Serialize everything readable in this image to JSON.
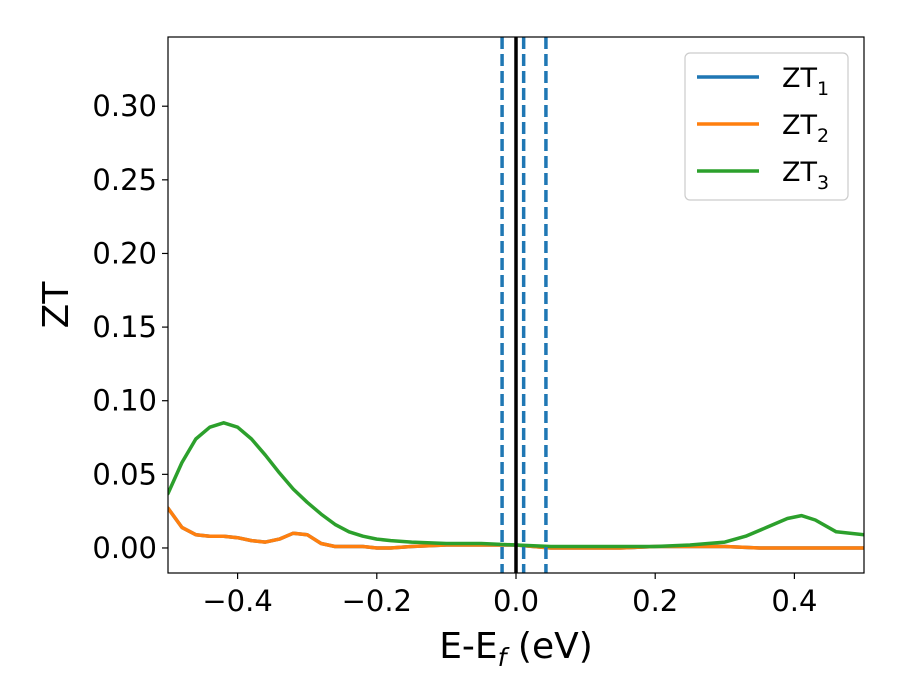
{
  "chart_data": {
    "type": "line",
    "title": "",
    "xlabel": {
      "base": "E-E",
      "sub": "f",
      "suffix": " (eV)"
    },
    "ylabel": "ZT",
    "xlim": [
      -0.5,
      0.5
    ],
    "ylim": [
      -0.017,
      0.347
    ],
    "xticks": [
      {
        "value": -0.4,
        "label": "−0.4"
      },
      {
        "value": -0.2,
        "label": "−0.2"
      },
      {
        "value": 0.0,
        "label": "0.0"
      },
      {
        "value": 0.2,
        "label": "0.2"
      },
      {
        "value": 0.4,
        "label": "0.4"
      }
    ],
    "yticks": [
      {
        "value": 0.0,
        "label": "0.00"
      },
      {
        "value": 0.05,
        "label": "0.05"
      },
      {
        "value": 0.1,
        "label": "0.10"
      },
      {
        "value": 0.15,
        "label": "0.15"
      },
      {
        "value": 0.2,
        "label": "0.20"
      },
      {
        "value": 0.25,
        "label": "0.25"
      },
      {
        "value": 0.3,
        "label": "0.30"
      }
    ],
    "grid": false,
    "legend_position": "top-right",
    "series": [
      {
        "name": "ZT",
        "sub": "1",
        "color": "#1f77b4",
        "x": [
          -0.5,
          -0.48,
          -0.46,
          -0.44,
          -0.42,
          -0.4,
          -0.38,
          -0.36,
          -0.34,
          -0.32,
          -0.3,
          -0.28,
          -0.26,
          -0.24,
          -0.22,
          -0.2,
          -0.18,
          -0.15,
          -0.1,
          -0.05,
          0.0,
          0.05,
          0.1,
          0.15,
          0.2,
          0.25,
          0.3,
          0.35,
          0.4,
          0.45,
          0.5
        ],
        "y": [
          0.027,
          0.014,
          0.009,
          0.008,
          0.008,
          0.007,
          0.005,
          0.004,
          0.006,
          0.01,
          0.009,
          0.003,
          0.001,
          0.001,
          0.001,
          0.0,
          0.0,
          0.001,
          0.002,
          0.002,
          0.002,
          0.0,
          0.0,
          0.0,
          0.001,
          0.001,
          0.001,
          0.0,
          0.0,
          0.0,
          0.0
        ]
      },
      {
        "name": "ZT",
        "sub": "2",
        "color": "#ff7f0e",
        "x": [
          -0.5,
          -0.48,
          -0.46,
          -0.44,
          -0.42,
          -0.4,
          -0.38,
          -0.36,
          -0.34,
          -0.32,
          -0.3,
          -0.28,
          -0.26,
          -0.24,
          -0.22,
          -0.2,
          -0.18,
          -0.15,
          -0.1,
          -0.05,
          0.0,
          0.05,
          0.1,
          0.15,
          0.2,
          0.25,
          0.3,
          0.35,
          0.4,
          0.45,
          0.5
        ],
        "y": [
          0.027,
          0.014,
          0.009,
          0.008,
          0.008,
          0.007,
          0.005,
          0.004,
          0.006,
          0.01,
          0.009,
          0.003,
          0.001,
          0.001,
          0.001,
          0.0,
          0.0,
          0.001,
          0.002,
          0.002,
          0.002,
          0.0,
          0.0,
          0.0,
          0.001,
          0.001,
          0.001,
          0.0,
          0.0,
          0.0,
          0.0
        ]
      },
      {
        "name": "ZT",
        "sub": "3",
        "color": "#2ca02c",
        "x": [
          -0.5,
          -0.48,
          -0.46,
          -0.44,
          -0.42,
          -0.4,
          -0.38,
          -0.36,
          -0.34,
          -0.32,
          -0.3,
          -0.28,
          -0.26,
          -0.24,
          -0.22,
          -0.2,
          -0.18,
          -0.15,
          -0.1,
          -0.05,
          0.0,
          0.05,
          0.1,
          0.15,
          0.2,
          0.25,
          0.3,
          0.33,
          0.36,
          0.39,
          0.41,
          0.43,
          0.46,
          0.5
        ],
        "y": [
          0.037,
          0.058,
          0.074,
          0.082,
          0.085,
          0.082,
          0.074,
          0.063,
          0.051,
          0.04,
          0.031,
          0.023,
          0.016,
          0.011,
          0.008,
          0.006,
          0.005,
          0.004,
          0.003,
          0.003,
          0.002,
          0.001,
          0.001,
          0.001,
          0.001,
          0.002,
          0.004,
          0.008,
          0.014,
          0.02,
          0.022,
          0.019,
          0.011,
          0.009
        ]
      }
    ],
    "vlines": [
      {
        "x": 0.0,
        "color": "#000000",
        "style": "solid"
      },
      {
        "x": -0.02,
        "color": "#1f77b4",
        "style": "dashed"
      },
      {
        "x": 0.011,
        "color": "#1f77b4",
        "style": "dashed"
      },
      {
        "x": 0.043,
        "color": "#1f77b4",
        "style": "dashed"
      }
    ]
  }
}
